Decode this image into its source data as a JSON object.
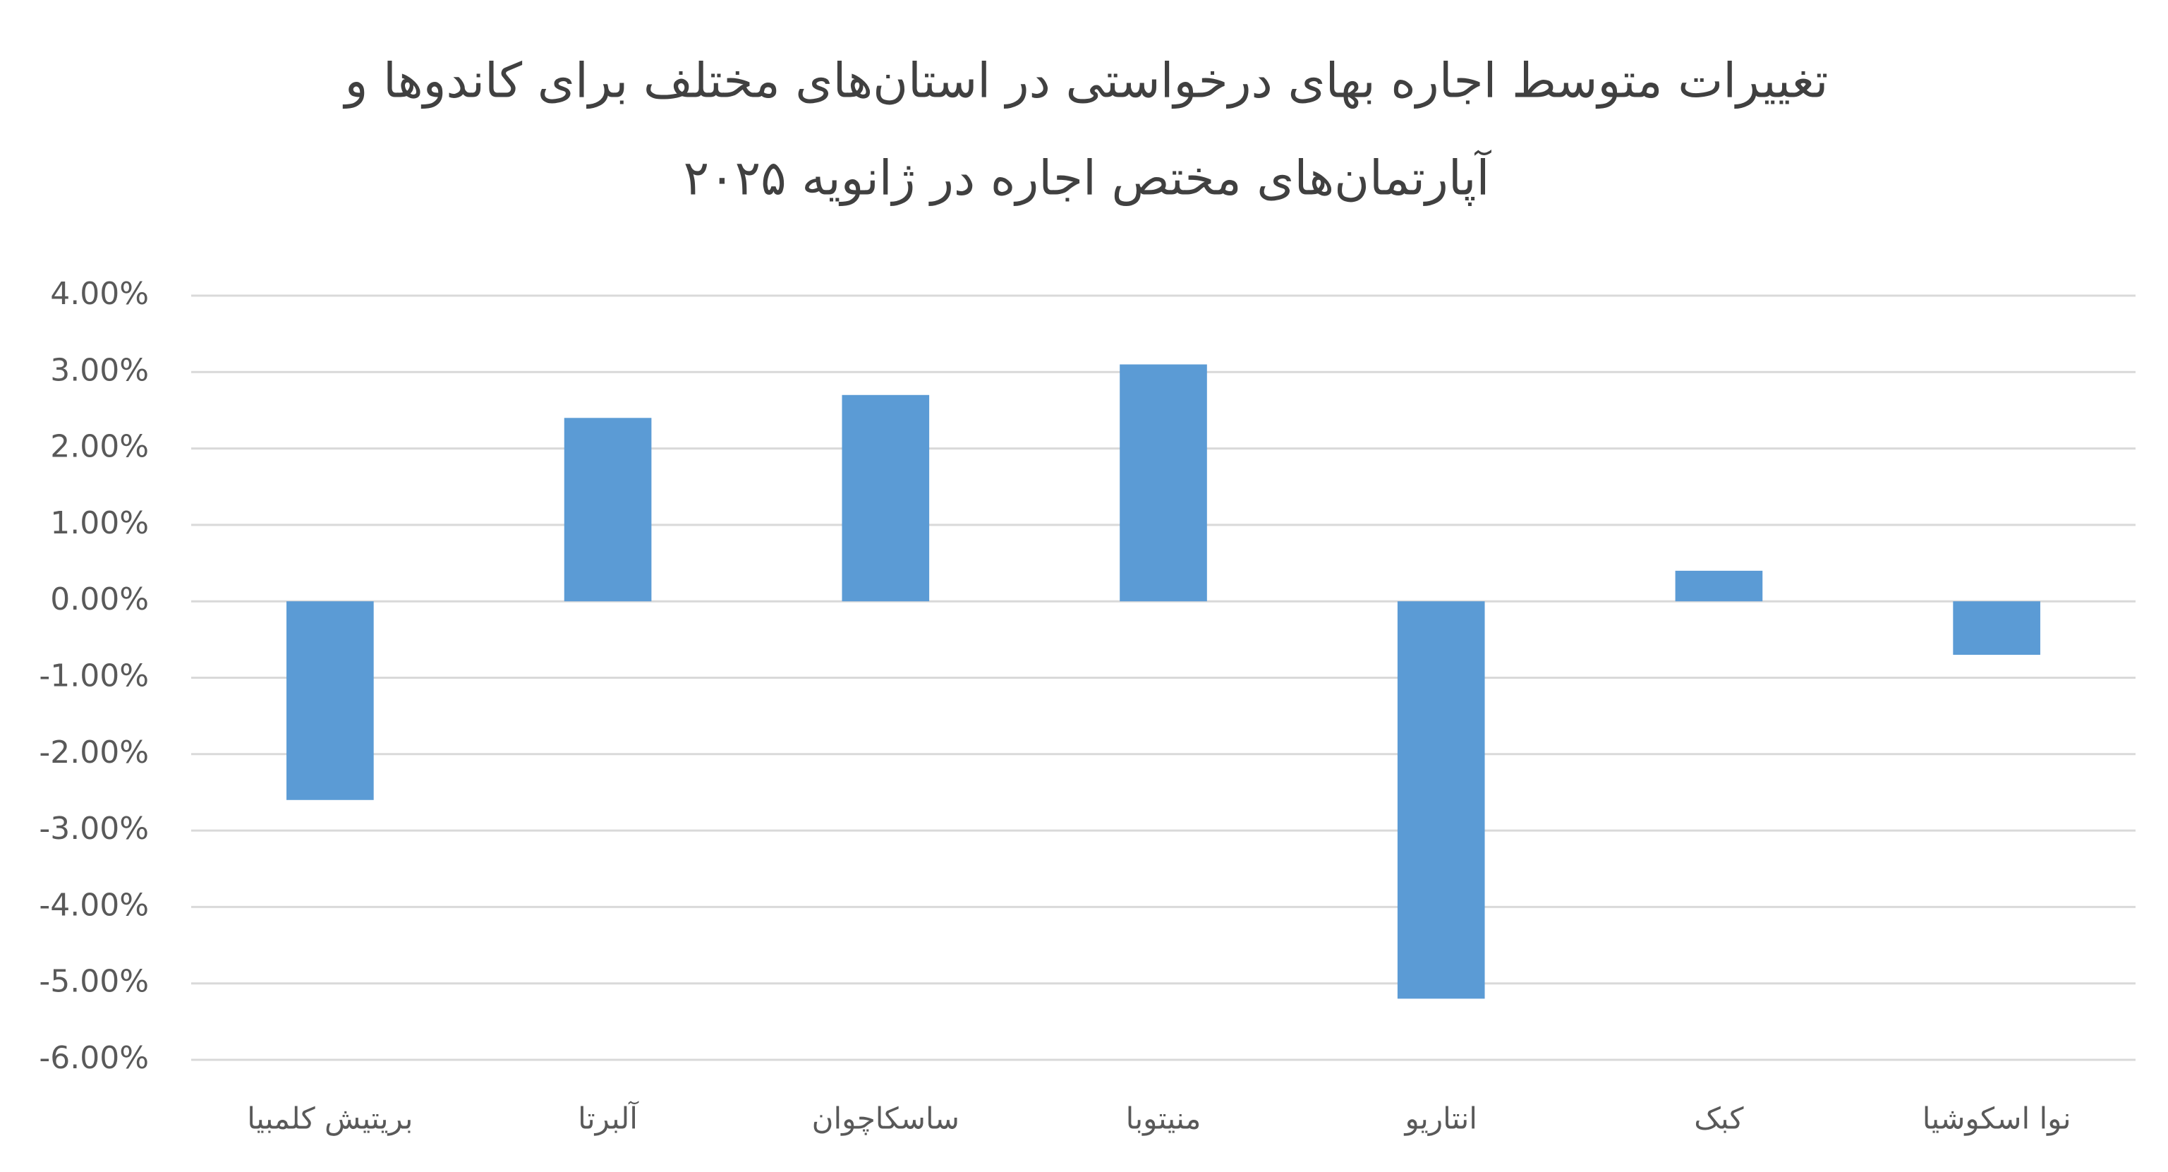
{
  "chart_data": {
    "type": "bar",
    "title": [
      "تغییرات متوسط اجاره بهای درخواستی در استان‌های مختلف برای کاندوها و",
      "آپارتمان‌های مختص اجاره در ژانویه ۲۰۲۵"
    ],
    "categories": [
      "بریتیش کلمبیا",
      "آلبرتا",
      "ساسکاچوان",
      "منیتوبا",
      "انتاریو",
      "کبک",
      "نوا اسکوشیا"
    ],
    "values": [
      -2.6,
      2.4,
      2.7,
      3.1,
      -5.2,
      0.4,
      -0.7
    ],
    "color": "#5b9bd5",
    "ylim": [
      -6,
      4
    ],
    "yticks": [
      {
        "value": 4,
        "label": "4.00%"
      },
      {
        "value": 3,
        "label": "3.00%"
      },
      {
        "value": 2,
        "label": "2.00%"
      },
      {
        "value": 1,
        "label": "1.00%"
      },
      {
        "value": 0,
        "label": "0.00%"
      },
      {
        "value": -1,
        "label": "-1.00%"
      },
      {
        "value": -2,
        "label": "-2.00%"
      },
      {
        "value": -3,
        "label": "-3.00%"
      },
      {
        "value": -4,
        "label": "-4.00%"
      },
      {
        "value": -5,
        "label": "-5.00%"
      },
      {
        "value": -6,
        "label": "-6.00%"
      }
    ],
    "grid": true
  }
}
